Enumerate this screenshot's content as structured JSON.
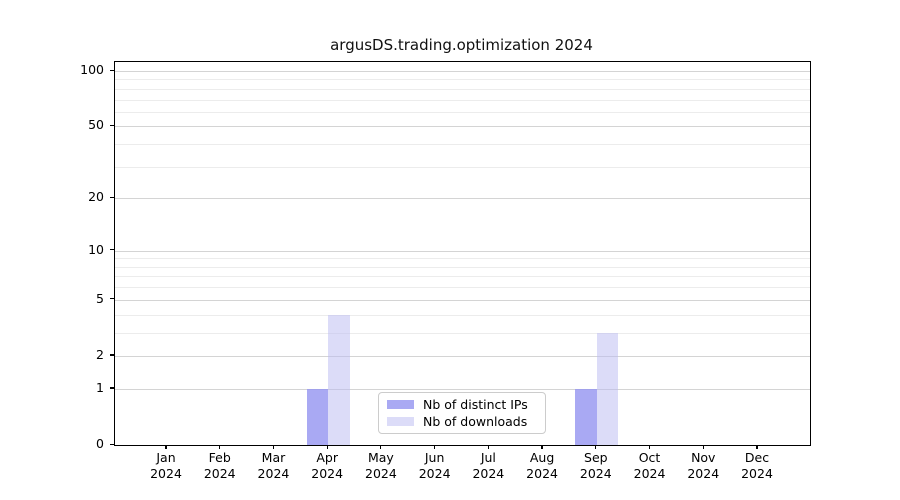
{
  "chart_data": {
    "type": "bar",
    "title": "argusDS.trading.optimization 2024",
    "categories": [
      "Jan 2024",
      "Feb 2024",
      "Mar 2024",
      "Apr 2024",
      "May 2024",
      "Jun 2024",
      "Jul 2024",
      "Aug 2024",
      "Sep 2024",
      "Oct 2024",
      "Nov 2024",
      "Dec 2024"
    ],
    "series": [
      {
        "name": "Nb of distinct IPs",
        "color": "rgba(148,148,240,0.8)",
        "color_hex": "#a9a9f2",
        "values": [
          0,
          0,
          0,
          1,
          0,
          0,
          0,
          0,
          1,
          0,
          0,
          0
        ]
      },
      {
        "name": "Nb of downloads",
        "color": "rgba(185,185,241,0.5)",
        "color_hex": "#dcdcf8",
        "values": [
          0,
          0,
          0,
          4,
          0,
          0,
          0,
          0,
          3,
          0,
          0,
          0
        ]
      }
    ],
    "xlabel": "",
    "ylabel": "",
    "yscale": "log1p",
    "ylim": [
      0,
      113
    ],
    "yticks": [
      0,
      1,
      2,
      5,
      10,
      20,
      50,
      100
    ],
    "yticks_minor": [
      3,
      4,
      6,
      7,
      8,
      9,
      30,
      40,
      60,
      70,
      80,
      90
    ],
    "grid": "on",
    "legend_position": "lower-center",
    "colors": {
      "grid_major": "#d4d4d4",
      "grid_minor": "#ececec",
      "spine": "#000000",
      "text": "#000000",
      "legend_border": "#cccccc"
    }
  }
}
